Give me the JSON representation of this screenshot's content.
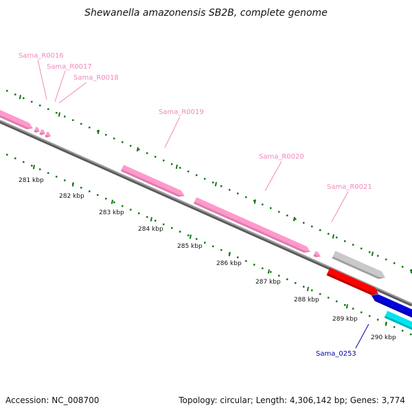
{
  "title": "Shewanella amazonensis SB2B, complete genome",
  "footer": {
    "accession": "Accession: NC_008700",
    "summary": "Topology: circular; Length: 4,306,142 bp; Genes: 3,774"
  },
  "colors": {
    "rna_gene": "#ff99cc",
    "rna_label": "#ee88bb",
    "gray_gene": "#c9c9c9",
    "red_gene": "#ff0000",
    "blue_gene": "#0000dd",
    "cyan_gene": "#00e5ee",
    "backbone": "#808080",
    "ticks": "#117711",
    "protein_label": "#0000aa"
  },
  "ticks": [
    "281 kbp",
    "282 kbp",
    "283 kbp",
    "284 kbp",
    "285 kbp",
    "286 kbp",
    "287 kbp",
    "288 kbp",
    "289 kbp",
    "290 kbp"
  ],
  "gene_labels": [
    "Sama_R0016",
    "Sama_R0017",
    "Sama_R0018",
    "Sama_R0019",
    "Sama_R0020",
    "Sama_R0021",
    "Sama_0253"
  ]
}
